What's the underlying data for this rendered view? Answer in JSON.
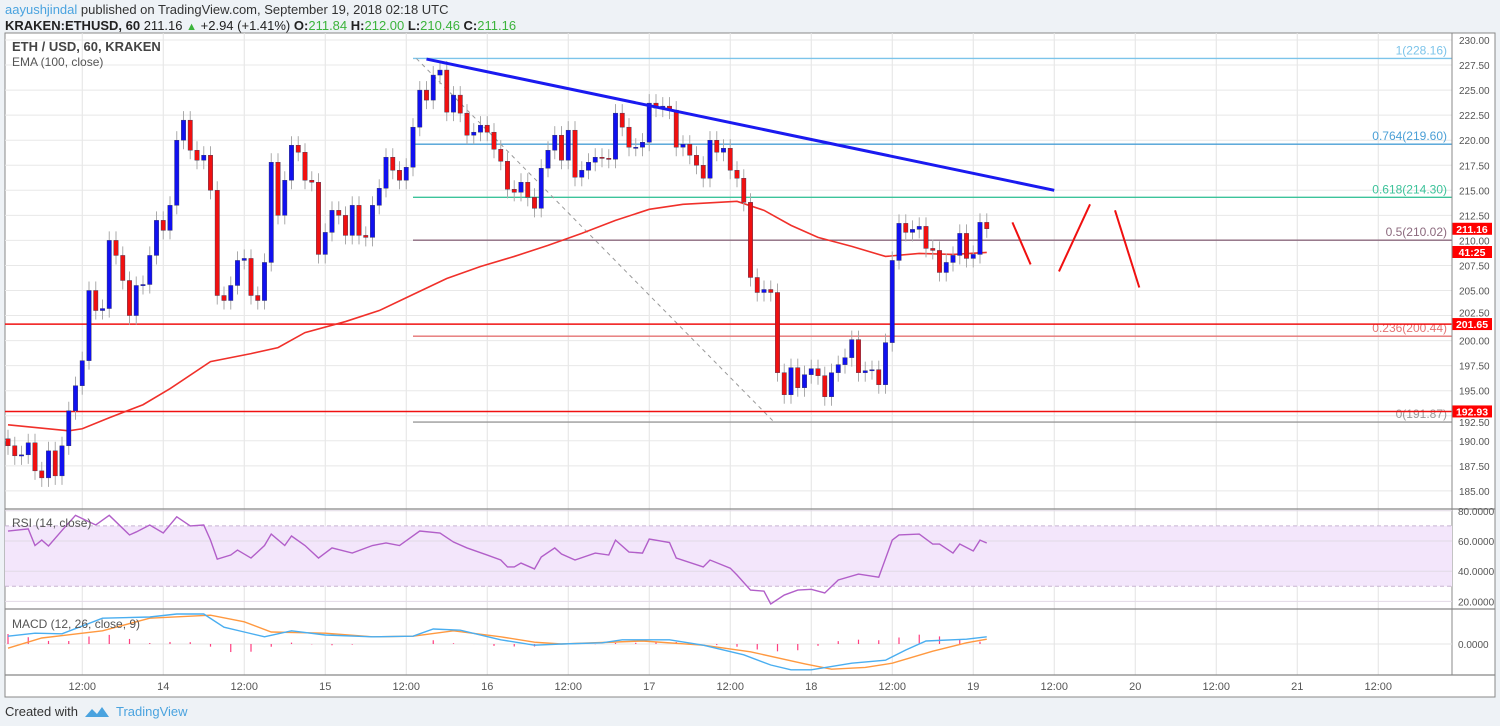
{
  "header": {
    "author": "aayushjindal",
    "published": "published on TradingView.com, September 19, 2018 02:18 UTC",
    "symbol": "KRAKEN:ETHUSD, 60",
    "last": "211.16",
    "change": "+2.94 (+1.41%)",
    "o_label": "O:",
    "o": "211.84",
    "h_label": "H:",
    "h": "212.00",
    "l_label": "L:",
    "l": "210.46",
    "c_label": "C:",
    "c": "211.16"
  },
  "footer": {
    "created_with": "Created with",
    "brand": "TradingView"
  },
  "colors": {
    "up": "#1010f0",
    "down": "#f01010",
    "ema": "#f0302a",
    "trend": "#1a1af0",
    "rsi": "#b25fc9",
    "macd": "#4aaef0",
    "signal": "#ff9940",
    "hist": "#ff3d7f"
  },
  "chart_data": {
    "type": "candlestick",
    "title": "ETH / USD, 60, KRAKEN",
    "ema_label": "EMA (100, close)",
    "ylim": [
      184,
      231
    ],
    "yticks": [
      "230.00",
      "227.50",
      "225.00",
      "222.50",
      "220.00",
      "217.50",
      "215.00",
      "212.50",
      "210.00",
      "207.50",
      "205.00",
      "202.50",
      "200.00",
      "197.50",
      "195.00",
      "192.50",
      "190.00",
      "187.50",
      "185.00"
    ],
    "xticks": [
      {
        "i": 11,
        "label": "12:00"
      },
      {
        "i": 23,
        "label": "14"
      },
      {
        "i": 35,
        "label": "12:00"
      },
      {
        "i": 47,
        "label": "15"
      },
      {
        "i": 59,
        "label": "12:00"
      },
      {
        "i": 71,
        "label": "16"
      },
      {
        "i": 83,
        "label": "12:00"
      },
      {
        "i": 95,
        "label": "17"
      },
      {
        "i": 107,
        "label": "12:00"
      },
      {
        "i": 119,
        "label": "18"
      },
      {
        "i": 131,
        "label": "12:00"
      },
      {
        "i": 143,
        "label": "19"
      },
      {
        "i": 155,
        "label": "12:00"
      },
      {
        "i": 167,
        "label": "20"
      },
      {
        "i": 179,
        "label": "12:00"
      },
      {
        "i": 191,
        "label": "21"
      },
      {
        "i": 203,
        "label": "12:00"
      }
    ],
    "first_open": 190.2,
    "closes": [
      189.5,
      188.5,
      188.6,
      189.8,
      187,
      186.3,
      189,
      186.5,
      189.5,
      193,
      195.5,
      198,
      205,
      203,
      203.2,
      210,
      208.5,
      206,
      202.5,
      205.5,
      205.6,
      208.5,
      212,
      211,
      213.5,
      220,
      222,
      219,
      218,
      218.5,
      215,
      204.5,
      204,
      205.5,
      208,
      208.2,
      204.5,
      204,
      207.8,
      217.8,
      212.5,
      216,
      219.5,
      218.8,
      216,
      215.8,
      208.6,
      210.8,
      213,
      212.5,
      210.5,
      213.5,
      210.5,
      210.3,
      213.5,
      215.2,
      218.3,
      217,
      216,
      217.3,
      221.3,
      225,
      224,
      226.5,
      227,
      222.8,
      224.5,
      222.7,
      220.5,
      220.8,
      221.5,
      220.8,
      219.1,
      217.9,
      215.1,
      214.8,
      215.8,
      214.3,
      213.2,
      217.2,
      219,
      220.5,
      218,
      221,
      216.3,
      217,
      217.8,
      218.3,
      218.2,
      218.1,
      222.7,
      221.3,
      219.3,
      219.3,
      219.8,
      223.7,
      223.2,
      223.4,
      223,
      219.3,
      219.6,
      218.5,
      217.5,
      216.2,
      220,
      218.8,
      219.2,
      217,
      216.2,
      213.8,
      206.3,
      204.8,
      205.1,
      204.8,
      196.8,
      194.6,
      197.3,
      195.3,
      196.6,
      197.2,
      196.5,
      194.4,
      196.8,
      197.6,
      198.3,
      200.1,
      196.8,
      197,
      197.1,
      195.6,
      199.8,
      208,
      211.7,
      210.8,
      211.1,
      211.4,
      209.2,
      209,
      206.8,
      207.8,
      208.5,
      210.7,
      208.2,
      208.6,
      211.8,
      211.16
    ],
    "ema100": [
      [
        0,
        191.6
      ],
      [
        9,
        191.0
      ],
      [
        11,
        191.2
      ],
      [
        15,
        192.3
      ],
      [
        20,
        193.6
      ],
      [
        24,
        195.2
      ],
      [
        30,
        197.9
      ],
      [
        36,
        198.7
      ],
      [
        40,
        199.3
      ],
      [
        44,
        200.8
      ],
      [
        50,
        201.9
      ],
      [
        55,
        203.0
      ],
      [
        60,
        204.6
      ],
      [
        65,
        206.2
      ],
      [
        70,
        207.4
      ],
      [
        75,
        208.4
      ],
      [
        80,
        209.5
      ],
      [
        85,
        210.7
      ],
      [
        90,
        212
      ],
      [
        95,
        213.1
      ],
      [
        100,
        213.6
      ],
      [
        108,
        213.9
      ],
      [
        112,
        213.0
      ],
      [
        116,
        211.5
      ],
      [
        120,
        210.3
      ],
      [
        125,
        209.4
      ],
      [
        130,
        208.4
      ],
      [
        135,
        208.7
      ],
      [
        140,
        208.6
      ],
      [
        145,
        208.8
      ]
    ],
    "horizontal_levels": [
      {
        "value": 201.65,
        "label": "201.65"
      },
      {
        "value": 192.93,
        "label": "192.93"
      }
    ],
    "last_price_tag": "211.16",
    "countdown_tag": "41:25",
    "fibonacci": [
      {
        "value": 228.16,
        "label": "1(228.16)",
        "color": "#7cc4ea"
      },
      {
        "value": 219.6,
        "label": "0.764(219.60)",
        "color": "#4a9fd6"
      },
      {
        "value": 214.3,
        "label": "0.618(214.30)",
        "color": "#3cc39a"
      },
      {
        "value": 210.02,
        "label": "0.5(210.02)",
        "color": "#8c6a7e"
      },
      {
        "value": 200.44,
        "label": "0.236(200.44)",
        "color": "#e57373"
      },
      {
        "value": 191.87,
        "label": "0(191.87)",
        "color": "#9a9a9a"
      }
    ],
    "fib_start_index": 60,
    "fib_diagonal": [
      [
        60.5,
        228.16
      ],
      [
        113.5,
        191.87
      ]
    ],
    "trendline": [
      [
        62,
        228.1
      ],
      [
        155,
        215.0
      ]
    ],
    "projection": [
      [
        [
          148.8,
          211.8
        ],
        [
          151.5,
          207.6
        ]
      ],
      [
        [
          155.7,
          206.9
        ],
        [
          160.3,
          213.6
        ]
      ],
      [
        [
          164,
          213.0
        ],
        [
          167.6,
          205.3
        ]
      ]
    ],
    "rsi": {
      "label": "RSI (14, close)",
      "yticks": [
        "80.0000",
        "60.0000",
        "40.0000",
        "20.0000"
      ],
      "band": [
        30,
        70
      ],
      "points": [
        [
          0,
          66.6
        ],
        [
          3,
          68
        ],
        [
          4,
          57
        ],
        [
          5,
          60.6
        ],
        [
          6,
          56.7
        ],
        [
          8,
          67
        ],
        [
          10,
          77
        ],
        [
          13,
          70.6
        ],
        [
          15,
          77
        ],
        [
          18,
          64
        ],
        [
          19,
          66
        ],
        [
          21,
          70.6
        ],
        [
          23,
          65.3
        ],
        [
          25,
          76
        ],
        [
          27,
          70
        ],
        [
          29,
          70.6
        ],
        [
          30,
          60.6
        ],
        [
          31,
          48
        ],
        [
          33,
          50.7
        ],
        [
          34,
          54
        ],
        [
          36,
          48.7
        ],
        [
          38,
          57
        ],
        [
          39,
          64.6
        ],
        [
          41,
          57
        ],
        [
          42,
          63.3
        ],
        [
          44,
          57
        ],
        [
          46,
          48.7
        ],
        [
          48,
          55.4
        ],
        [
          51,
          52
        ],
        [
          54,
          57
        ],
        [
          56,
          58.7
        ],
        [
          58,
          57
        ],
        [
          61,
          66.6
        ],
        [
          64,
          65.3
        ],
        [
          66,
          59.3
        ],
        [
          68,
          55.4
        ],
        [
          71,
          50.7
        ],
        [
          73,
          47.4
        ],
        [
          74,
          42.8
        ],
        [
          75,
          42.8
        ],
        [
          76,
          45.4
        ],
        [
          78,
          41.5
        ],
        [
          79,
          49.4
        ],
        [
          81,
          55.4
        ],
        [
          82,
          51.4
        ],
        [
          84,
          47.4
        ],
        [
          87,
          52
        ],
        [
          89,
          50.7
        ],
        [
          90,
          60.6
        ],
        [
          92,
          52.7
        ],
        [
          94,
          52
        ],
        [
          95,
          61.3
        ],
        [
          98,
          59
        ],
        [
          99,
          48.7
        ],
        [
          103,
          42.8
        ],
        [
          104,
          47.4
        ],
        [
          107,
          42
        ],
        [
          108,
          37.5
        ],
        [
          110,
          27.5
        ],
        [
          112,
          26.8
        ],
        [
          113,
          18.3
        ],
        [
          115,
          24.2
        ],
        [
          117,
          27.5
        ],
        [
          119,
          28
        ],
        [
          121,
          25.6
        ],
        [
          123,
          34.2
        ],
        [
          126,
          38.1
        ],
        [
          129,
          36
        ],
        [
          131,
          60.6
        ],
        [
          132,
          64
        ],
        [
          135,
          64.6
        ],
        [
          137,
          58
        ],
        [
          138,
          58
        ],
        [
          140,
          52
        ],
        [
          141,
          58
        ],
        [
          143,
          53.4
        ],
        [
          144,
          60.6
        ],
        [
          145,
          58.7
        ]
      ]
    },
    "macd": {
      "label": "MACD (12, 26, close, 9)",
      "ytick": "0.0000",
      "macd": [
        [
          0,
          1.3
        ],
        [
          4,
          1.8
        ],
        [
          8,
          1.7
        ],
        [
          14,
          4.3
        ],
        [
          21,
          4.5
        ],
        [
          25,
          5
        ],
        [
          29,
          5
        ],
        [
          32,
          2.8
        ],
        [
          35,
          2
        ],
        [
          38,
          1.2
        ],
        [
          42,
          2.2
        ],
        [
          47,
          1.5
        ],
        [
          54,
          1.2
        ],
        [
          60,
          1.3
        ],
        [
          63,
          2.5
        ],
        [
          67,
          2.3
        ],
        [
          73,
          0.7
        ],
        [
          78,
          -0.2
        ],
        [
          82,
          0
        ],
        [
          88,
          0.2
        ],
        [
          91,
          0.7
        ],
        [
          98,
          0.7
        ],
        [
          103,
          -0.2
        ],
        [
          109,
          -1.8
        ],
        [
          113,
          -3.5
        ],
        [
          116,
          -4.3
        ],
        [
          119,
          -4.3
        ],
        [
          125,
          -3.2
        ],
        [
          130,
          -2.7
        ],
        [
          133,
          -1
        ],
        [
          136,
          0.5
        ],
        [
          142,
          0.8
        ],
        [
          145,
          1.2
        ]
      ],
      "signal": [
        [
          0,
          -0.7
        ],
        [
          5,
          1
        ],
        [
          14,
          2.2
        ],
        [
          21,
          4.3
        ],
        [
          30,
          4.8
        ],
        [
          35,
          3.7
        ],
        [
          39,
          2
        ],
        [
          47,
          1.8
        ],
        [
          54,
          1.2
        ],
        [
          60,
          1.3
        ],
        [
          66,
          2.2
        ],
        [
          73,
          1.2
        ],
        [
          78,
          0.3
        ],
        [
          82,
          0
        ],
        [
          94,
          0.5
        ],
        [
          103,
          -0.2
        ],
        [
          110,
          -1.3
        ],
        [
          118,
          -3.3
        ],
        [
          122,
          -4.2
        ],
        [
          127,
          -3.9
        ],
        [
          131,
          -3.2
        ],
        [
          137,
          -1.2
        ],
        [
          142,
          0.2
        ],
        [
          145,
          0.8
        ]
      ]
    }
  }
}
